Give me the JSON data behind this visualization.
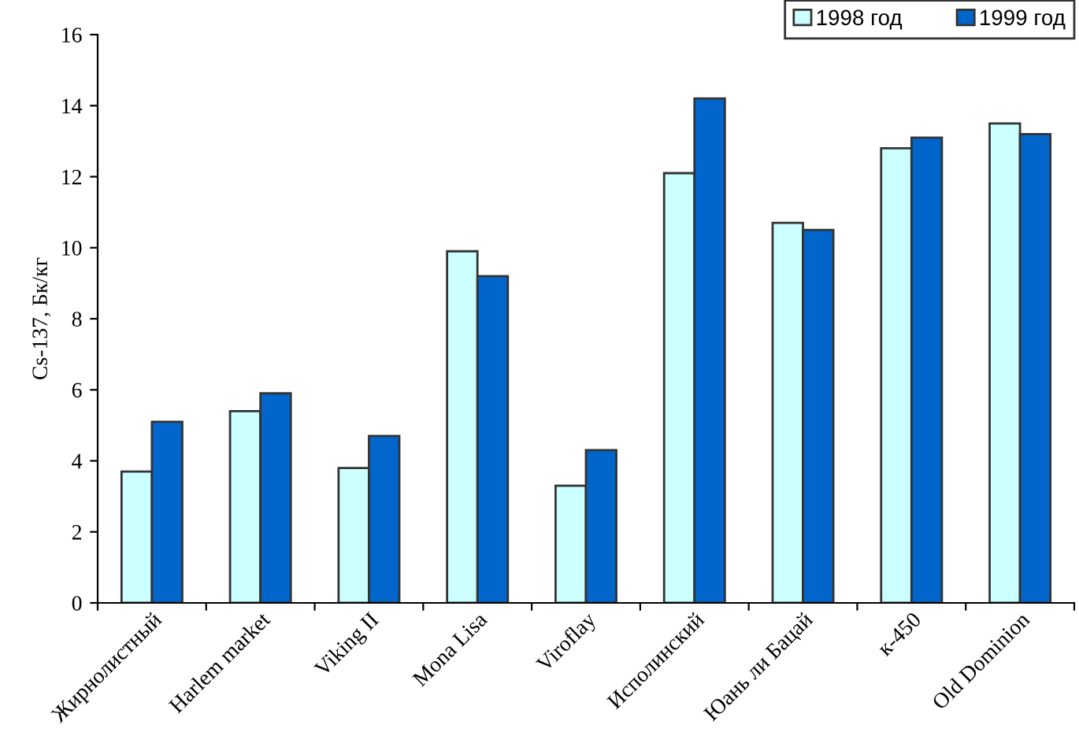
{
  "chart_data": {
    "type": "bar",
    "ylabel": "Cs-137, Бк/кг",
    "categories": [
      "Жирнолистный",
      "Harlem market",
      "Viking II",
      "Mona Lisa",
      "Viroflay",
      "Исполинский",
      "Юань ли Бацай",
      "к-450",
      "Old Dominion"
    ],
    "series": [
      {
        "name": "1998 год",
        "color": "#ccffff",
        "values": [
          3.7,
          5.4,
          3.8,
          9.9,
          3.3,
          12.1,
          10.7,
          12.8,
          13.5
        ]
      },
      {
        "name": "1999 год",
        "color": "#0066cc",
        "values": [
          5.1,
          5.9,
          4.7,
          9.2,
          4.3,
          14.2,
          10.5,
          13.1,
          13.2
        ]
      }
    ],
    "ylim": [
      0,
      16
    ],
    "yticks": [
      0,
      2,
      4,
      6,
      8,
      10,
      12,
      14,
      16
    ],
    "grid": false,
    "legend": "top right"
  }
}
